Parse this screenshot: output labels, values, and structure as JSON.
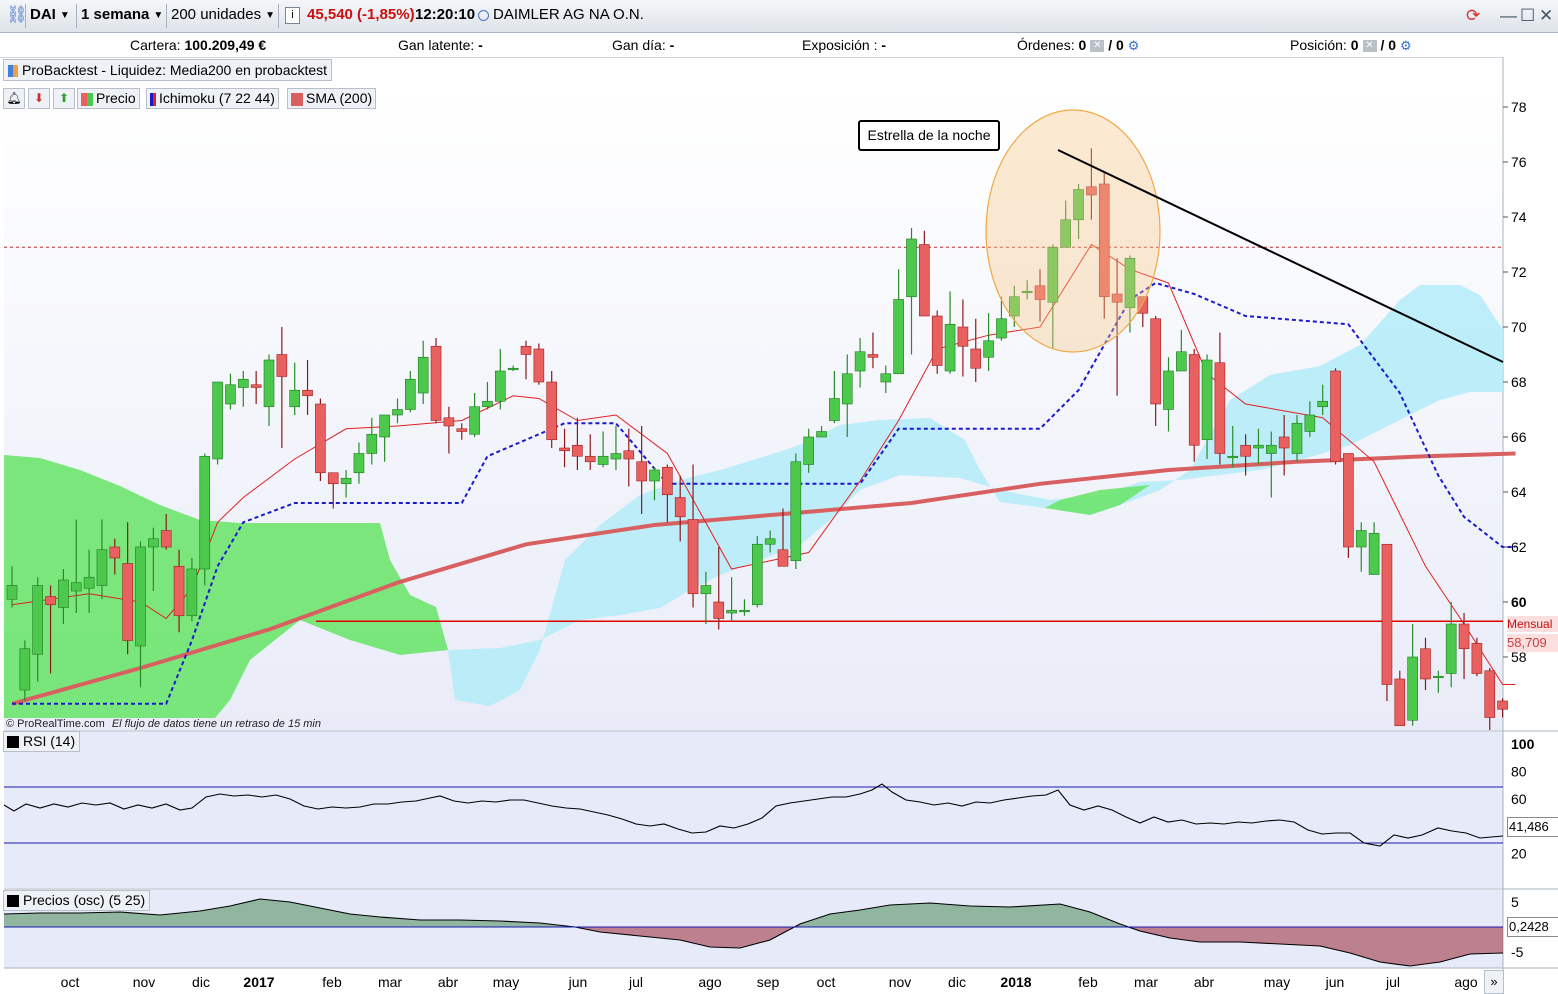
{
  "toolbar": {
    "symbol": "DAI",
    "timeframe": "1 semana",
    "units": "200 unidades",
    "quote": "45,540 (-1,85%)",
    "time": "12:20:10",
    "instrument": "DAIMLER AG NA O.N."
  },
  "account": {
    "cartera_label": "Cartera:",
    "cartera_value": "100.209,49 €",
    "gan_latente_label": "Gan latente:",
    "gan_latente_value": "-",
    "gan_dia_label": "Gan día:",
    "gan_dia_value": "-",
    "exposicion_label": "Exposición :",
    "exposicion_value": "-",
    "ordenes_label": "Órdenes:",
    "ordenes_a": "0",
    "ordenes_b": "/ 0",
    "posicion_label": "Posición:",
    "posicion_a": "0",
    "posicion_b": "/ 0"
  },
  "backtest_label": "ProBacktest - Liquidez: Media200 en probacktest",
  "legend": {
    "precio": "Precio",
    "ichimoku": "Ichimoku (7 22 44)",
    "sma": "SMA (200)"
  },
  "annotation": "Estrella de la noche",
  "credit": "© ProRealTime.com",
  "delay_note": "El flujo de datos tiene un retraso de 15 min",
  "price_axis": {
    "ticks": [
      "78",
      "76",
      "74",
      "72",
      "70",
      "68",
      "66",
      "64",
      "62",
      "60",
      "58"
    ],
    "mensual_label": "Mensual",
    "last_value": "58,709"
  },
  "rsi": {
    "label": "RSI (14)",
    "ticks": [
      "100",
      "80",
      "60",
      "20"
    ],
    "value": "41,486",
    "upper_level": 70,
    "lower_level": 30
  },
  "osc": {
    "label": "Precios (osc) (5 25)",
    "ticks": [
      "5",
      "-5"
    ],
    "value": "0,2428"
  },
  "time_axis": [
    "oct",
    "nov",
    "dic",
    "2017",
    "feb",
    "mar",
    "abr",
    "may",
    "jun",
    "jul",
    "ago",
    "sep",
    "oct",
    "nov",
    "dic",
    "2018",
    "feb",
    "mar",
    "abr",
    "may",
    "jun",
    "jul",
    "ago"
  ],
  "colors": {
    "bull": "#4cc94c",
    "bear": "#e86060",
    "sma": "#d96060",
    "kijun": "#1a1acc",
    "tenkan": "#e02020",
    "cloud_bull": "#6de46d",
    "cloud_bear": "#b6ecf8",
    "hline": "#e00000"
  },
  "chart_data": {
    "type": "candlestick",
    "y_axis_range": [
      56,
      79
    ],
    "horizontal_levels": [
      59.3,
      72.9
    ],
    "candles": [
      [
        60.1,
        60.6,
        61.3,
        59.8
      ],
      [
        56.8,
        58.3,
        58.6,
        56.4
      ],
      [
        58.1,
        60.6,
        60.9,
        57.1
      ],
      [
        60.2,
        59.9,
        60.6,
        57.4
      ],
      [
        59.8,
        60.8,
        61.2,
        59.2
      ],
      [
        60.4,
        60.7,
        63.0,
        59.6
      ],
      [
        60.5,
        60.9,
        61.9,
        59.6
      ],
      [
        60.6,
        61.9,
        63.0,
        60.1
      ],
      [
        62.0,
        61.6,
        62.3,
        61.0
      ],
      [
        61.4,
        58.6,
        62.9,
        58.1
      ],
      [
        58.4,
        62.0,
        62.2,
        56.9
      ],
      [
        62.0,
        62.3,
        62.7,
        60.4
      ],
      [
        62.6,
        62.0,
        63.2,
        61.9
      ],
      [
        61.3,
        59.5,
        61.9,
        58.9
      ],
      [
        59.5,
        61.2,
        61.6,
        59.3
      ],
      [
        61.2,
        65.3,
        65.4,
        60.6
      ],
      [
        65.2,
        68.0,
        68.0,
        65.0
      ],
      [
        67.2,
        67.9,
        68.3,
        67.0
      ],
      [
        67.8,
        68.1,
        68.4,
        67.1
      ],
      [
        67.9,
        67.8,
        68.4,
        67.2
      ],
      [
        67.1,
        68.8,
        69.0,
        66.4
      ],
      [
        69.0,
        68.2,
        70.0,
        65.6
      ],
      [
        67.1,
        67.7,
        68.7,
        66.8
      ],
      [
        67.7,
        67.5,
        68.8,
        66.8
      ],
      [
        67.2,
        64.7,
        67.4,
        64.4
      ],
      [
        64.7,
        64.3,
        64.6,
        63.4
      ],
      [
        64.3,
        64.5,
        64.8,
        63.8
      ],
      [
        64.7,
        65.4,
        65.8,
        64.3
      ],
      [
        65.4,
        66.1,
        66.7,
        65.0
      ],
      [
        66.0,
        66.8,
        66.8,
        65.1
      ],
      [
        66.8,
        67.0,
        67.4,
        66.5
      ],
      [
        67.0,
        68.1,
        68.4,
        66.9
      ],
      [
        67.6,
        68.9,
        69.5,
        67.2
      ],
      [
        69.3,
        66.6,
        69.6,
        66.5
      ],
      [
        66.7,
        66.4,
        67.1,
        65.4
      ],
      [
        66.3,
        66.2,
        66.5,
        65.9
      ],
      [
        66.1,
        67.1,
        67.6,
        66.0
      ],
      [
        67.1,
        67.3,
        68.0,
        67.0
      ],
      [
        67.3,
        68.4,
        69.2,
        67.0
      ],
      [
        68.5,
        68.5,
        68.6,
        68.4
      ],
      [
        69.3,
        69.0,
        69.5,
        68.1
      ],
      [
        69.2,
        68.0,
        69.4,
        67.9
      ],
      [
        68.0,
        65.9,
        68.4,
        65.6
      ],
      [
        65.6,
        65.5,
        66.3,
        64.9
      ],
      [
        65.7,
        65.3,
        66.7,
        64.8
      ],
      [
        65.3,
        65.1,
        66.1,
        64.8
      ],
      [
        65.0,
        65.3,
        66.2,
        64.9
      ],
      [
        65.2,
        65.4,
        66.4,
        64.8
      ],
      [
        65.5,
        65.2,
        66.3,
        64.2
      ],
      [
        65.1,
        64.4,
        66.4,
        63.2
      ],
      [
        64.4,
        64.8,
        64.9,
        63.7
      ],
      [
        64.9,
        63.9,
        65.0,
        62.9
      ],
      [
        63.8,
        63.1,
        64.6,
        62.2
      ],
      [
        63.0,
        60.3,
        65.0,
        59.8
      ],
      [
        60.3,
        60.6,
        61.1,
        59.2
      ],
      [
        60.0,
        59.4,
        62.0,
        59.0
      ],
      [
        59.6,
        59.7,
        60.9,
        59.3
      ],
      [
        59.7,
        59.7,
        60.1,
        59.5
      ],
      [
        59.9,
        62.1,
        62.4,
        59.8
      ],
      [
        62.1,
        62.3,
        62.6,
        61.8
      ],
      [
        61.9,
        61.3,
        63.4,
        61.4
      ],
      [
        61.5,
        65.1,
        65.4,
        61.2
      ],
      [
        65.0,
        66.0,
        66.3,
        64.7
      ],
      [
        66.0,
        66.2,
        66.4,
        66.1
      ],
      [
        66.6,
        67.4,
        68.4,
        66.5
      ],
      [
        67.2,
        68.3,
        69.0,
        66.0
      ],
      [
        68.4,
        69.1,
        69.6,
        67.8
      ],
      [
        69.0,
        68.9,
        69.8,
        68.5
      ],
      [
        68.0,
        68.3,
        68.6,
        67.6
      ],
      [
        68.3,
        71.0,
        72.1,
        68.4
      ],
      [
        71.1,
        73.2,
        73.6,
        69.0
      ],
      [
        73.0,
        70.4,
        73.5,
        70.5
      ],
      [
        70.4,
        68.6,
        70.6,
        68.3
      ],
      [
        68.4,
        70.1,
        71.3,
        68.3
      ],
      [
        70.0,
        69.3,
        71.0,
        68.2
      ],
      [
        69.2,
        68.5,
        70.3,
        68.0
      ],
      [
        68.9,
        69.5,
        70.5,
        68.4
      ],
      [
        69.6,
        70.3,
        71.1,
        69.5
      ],
      [
        70.4,
        71.1,
        71.5,
        70.0
      ],
      [
        71.3,
        71.3,
        71.7,
        71.0
      ],
      [
        71.5,
        71.0,
        72.1,
        70.2
      ],
      [
        70.9,
        72.9,
        73.0,
        69.2
      ],
      [
        72.9,
        73.9,
        74.6,
        73.0
      ],
      [
        73.9,
        75.0,
        75.2,
        73.2
      ],
      [
        75.1,
        74.8,
        76.5,
        73.9
      ],
      [
        75.2,
        71.1,
        75.6,
        70.3
      ],
      [
        71.2,
        70.9,
        72.5,
        67.5
      ],
      [
        70.7,
        72.5,
        72.6,
        69.8
      ],
      [
        71.1,
        70.5,
        71.1,
        70.0
      ],
      [
        70.3,
        67.2,
        70.4,
        66.4
      ],
      [
        67.0,
        68.4,
        68.9,
        66.2
      ],
      [
        68.4,
        69.1,
        69.9,
        68.4
      ],
      [
        69.0,
        65.7,
        69.2,
        65.1
      ],
      [
        65.9,
        68.8,
        69.0,
        65.2
      ],
      [
        68.7,
        65.4,
        69.8,
        65.0
      ],
      [
        65.3,
        65.3,
        66.4,
        64.9
      ],
      [
        65.7,
        65.3,
        66.1,
        64.6
      ],
      [
        65.6,
        65.7,
        66.3,
        65.0
      ],
      [
        65.4,
        65.7,
        66.2,
        63.8
      ],
      [
        66.0,
        65.6,
        66.8,
        64.6
      ],
      [
        65.4,
        66.5,
        66.8,
        65.1
      ],
      [
        66.2,
        66.8,
        67.3,
        66.0
      ],
      [
        67.1,
        67.3,
        67.9,
        66.8
      ],
      [
        68.4,
        65.1,
        68.5,
        65.0
      ],
      [
        65.4,
        62.0,
        65.3,
        61.6
      ],
      [
        62.0,
        62.6,
        62.9,
        61.1
      ],
      [
        61.0,
        62.5,
        62.9,
        61.1
      ],
      [
        62.1,
        57.0,
        62.1,
        56.4
      ],
      [
        57.2,
        55.5,
        57.5,
        55.5
      ],
      [
        55.7,
        58.0,
        59.2,
        55.5
      ],
      [
        58.3,
        57.2,
        58.7,
        56.8
      ],
      [
        57.3,
        57.3,
        57.5,
        56.7
      ],
      [
        57.4,
        59.2,
        60.0,
        56.9
      ],
      [
        59.2,
        58.3,
        59.6,
        57.2
      ],
      [
        58.5,
        57.4,
        58.7,
        57.3
      ],
      [
        57.5,
        55.8,
        57.6,
        55.3
      ],
      [
        56.4,
        56.1,
        56.5,
        55.8
      ]
    ],
    "sma200": [
      [
        0,
        56.3
      ],
      [
        10,
        57.6
      ],
      [
        20,
        59.0
      ],
      [
        30,
        60.7
      ],
      [
        40,
        62.1
      ],
      [
        50,
        62.8
      ],
      [
        60,
        63.2
      ],
      [
        70,
        63.6
      ],
      [
        80,
        64.3
      ],
      [
        90,
        64.8
      ],
      [
        100,
        65.1
      ],
      [
        110,
        65.3
      ],
      [
        117,
        65.4
      ]
    ],
    "kijun": [
      [
        0,
        56.3
      ],
      [
        10,
        56.3
      ],
      [
        12,
        56.3
      ],
      [
        14,
        58.6
      ],
      [
        16,
        61.3
      ],
      [
        18,
        62.9
      ],
      [
        22,
        63.6
      ],
      [
        35,
        63.6
      ],
      [
        37,
        65.3
      ],
      [
        43,
        66.5
      ],
      [
        47,
        66.5
      ],
      [
        51,
        64.3
      ],
      [
        62,
        64.3
      ],
      [
        66,
        64.3
      ],
      [
        69,
        66.3
      ],
      [
        80,
        66.3
      ],
      [
        83,
        67.7
      ],
      [
        87,
        71.0
      ],
      [
        89,
        71.6
      ],
      [
        92,
        71.2
      ],
      [
        96,
        70.4
      ],
      [
        104,
        70.1
      ],
      [
        108,
        67.6
      ],
      [
        111,
        64.6
      ],
      [
        113,
        63.1
      ],
      [
        116,
        62.0
      ],
      [
        117,
        62.0
      ]
    ],
    "tenkan": [
      [
        0,
        59.9
      ],
      [
        6,
        60.3
      ],
      [
        10,
        60.0
      ],
      [
        12,
        59.4
      ],
      [
        14,
        60.5
      ],
      [
        16,
        62.9
      ],
      [
        18,
        63.8
      ],
      [
        22,
        65.2
      ],
      [
        26,
        66.3
      ],
      [
        30,
        66.4
      ],
      [
        35,
        66.6
      ],
      [
        39,
        67.5
      ],
      [
        41,
        67.4
      ],
      [
        44,
        66.6
      ],
      [
        47,
        66.8
      ],
      [
        51,
        65.4
      ],
      [
        56,
        61.2
      ],
      [
        62,
        61.8
      ],
      [
        66,
        64.4
      ],
      [
        69,
        66.6
      ],
      [
        72,
        69.2
      ],
      [
        76,
        69.7
      ],
      [
        80,
        70.0
      ],
      [
        84,
        73.0
      ],
      [
        87,
        72.1
      ],
      [
        90,
        71.6
      ],
      [
        93,
        68.3
      ],
      [
        96,
        67.2
      ],
      [
        102,
        66.7
      ],
      [
        106,
        65.1
      ],
      [
        110,
        61.3
      ],
      [
        113,
        59.2
      ],
      [
        116,
        57.0
      ],
      [
        117,
        57.0
      ]
    ]
  }
}
